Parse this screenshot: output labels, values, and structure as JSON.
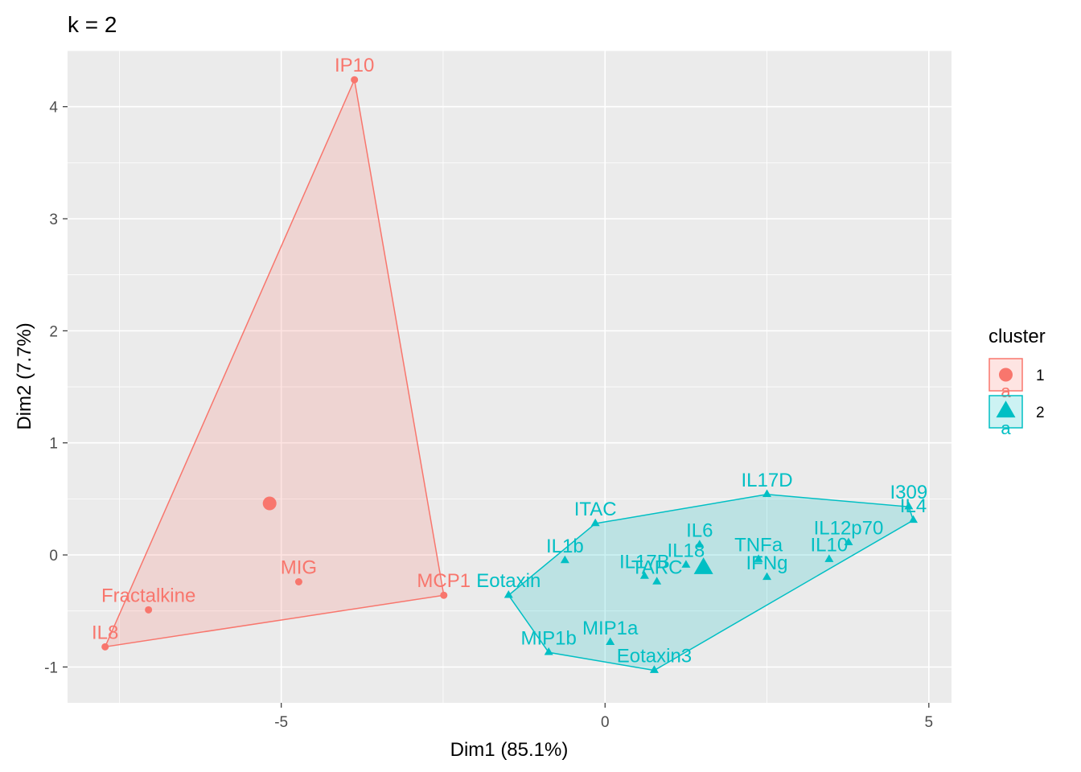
{
  "chart_data": {
    "type": "scatter",
    "title": "k = 2",
    "xlabel": "Dim1 (85.1%)",
    "ylabel": "Dim2 (7.7%)",
    "xlim": [
      -8.3,
      5.35
    ],
    "ylim": [
      -1.32,
      4.5
    ],
    "x_ticks": [
      -5,
      0,
      5
    ],
    "x_tick_labels": [
      "-5",
      "0",
      "5"
    ],
    "y_ticks": [
      -1,
      0,
      1,
      2,
      3,
      4
    ],
    "y_tick_labels": [
      "-1",
      "0",
      "1",
      "2",
      "3",
      "4"
    ],
    "grid": true,
    "legend": {
      "title": "cluster",
      "position": "right",
      "entries": [
        {
          "label": "1",
          "key_glyph": "a",
          "color": "#F8766D",
          "shape": "circle"
        },
        {
          "label": "2",
          "key_glyph": "a",
          "color": "#00BFC4",
          "shape": "triangle"
        }
      ]
    },
    "series": [
      {
        "name": "1",
        "color": "#F8766D",
        "shape": "circle",
        "centroid": {
          "x": -5.18,
          "y": 0.46
        },
        "hull_order": [
          "IP10",
          "MCP1",
          "IL8"
        ],
        "points": [
          {
            "label": "IP10",
            "x": -3.87,
            "y": 4.24
          },
          {
            "label": "MIG",
            "x": -4.73,
            "y": -0.24
          },
          {
            "label": "MCP1",
            "x": -2.49,
            "y": -0.36
          },
          {
            "label": "Fractalkine",
            "x": -7.05,
            "y": -0.49
          },
          {
            "label": "IL8",
            "x": -7.72,
            "y": -0.82
          }
        ]
      },
      {
        "name": "2",
        "color": "#00BFC4",
        "shape": "triangle",
        "centroid": {
          "x": 1.52,
          "y": -0.12
        },
        "hull_order": [
          "ITAC",
          "IL17D",
          "I309",
          "IL4",
          "Eotaxin3",
          "MIP1b",
          "Eotaxin"
        ],
        "points": [
          {
            "label": "IL17D",
            "x": 2.5,
            "y": 0.54
          },
          {
            "label": "I309",
            "x": 4.69,
            "y": 0.43
          },
          {
            "label": "IL4",
            "x": 4.76,
            "y": 0.31
          },
          {
            "label": "ITAC",
            "x": -0.15,
            "y": 0.28
          },
          {
            "label": "IL12p70",
            "x": 3.76,
            "y": 0.11
          },
          {
            "label": "IL6",
            "x": 1.46,
            "y": 0.09
          },
          {
            "label": "IL1b",
            "x": -0.62,
            "y": -0.05
          },
          {
            "label": "IL10",
            "x": 3.46,
            "y": -0.04
          },
          {
            "label": "TNFa",
            "x": 2.37,
            "y": -0.04
          },
          {
            "label": "IL18",
            "x": 1.25,
            "y": -0.09
          },
          {
            "label": "IL17B",
            "x": 0.61,
            "y": -0.19
          },
          {
            "label": "IFNg",
            "x": 2.5,
            "y": -0.2
          },
          {
            "label": "TARC",
            "x": 0.8,
            "y": -0.24
          },
          {
            "label": "Eotaxin",
            "x": -1.49,
            "y": -0.36
          },
          {
            "label": "MIP1a",
            "x": 0.08,
            "y": -0.78
          },
          {
            "label": "MIP1b",
            "x": -0.87,
            "y": -0.87
          },
          {
            "label": "Eotaxin3",
            "x": 0.76,
            "y": -1.03
          }
        ]
      }
    ]
  }
}
